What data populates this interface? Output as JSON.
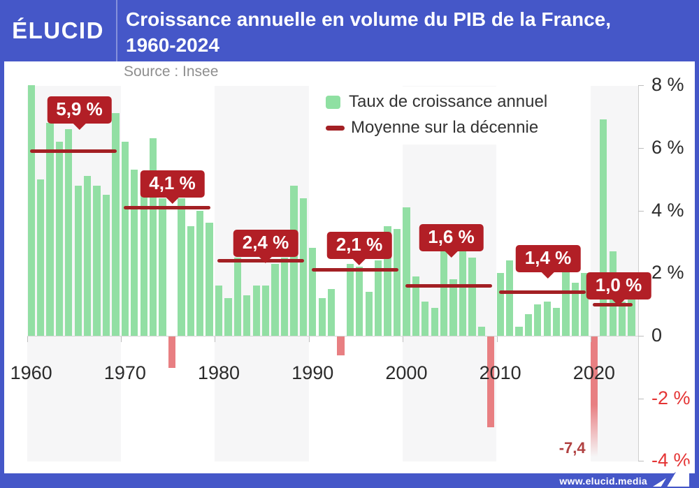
{
  "header": {
    "logo": "ÉLUCID",
    "title_line1": "Croissance annuelle en volume du PIB de la France,",
    "title_line2": "1960-2024"
  },
  "chart": {
    "source": "Source : Insee",
    "annotation_2020": "-7,4"
  },
  "legend": {
    "items": [
      {
        "swatch": "green-square",
        "label": "Taux de croissance annuel",
        "color": "#8fe0a2"
      },
      {
        "swatch": "red-line",
        "label": "Moyenne sur la décennie",
        "color": "#a32024"
      }
    ]
  },
  "footer": {
    "url": "www.elucid.media"
  },
  "colors": {
    "header_blue": "#4557c8",
    "bar_green": "#92dfa4",
    "bar_negative_pink": "#e87f82",
    "average_red": "#a32024",
    "callout_red": "#b21f26",
    "negative_label_red": "#e43434",
    "band_gray": "#f6f6f7"
  },
  "chart_data": {
    "type": "bar",
    "title": "Croissance annuelle en volume du PIB de la France, 1960-2024",
    "source": "Source : Insee",
    "xlabel": "",
    "ylabel": "%",
    "ylim": [
      -4,
      8
    ],
    "grid": "decade-bands",
    "legend_position": "top-center",
    "x_start": 1960,
    "x_end": 2024,
    "series": [
      {
        "name": "Taux de croissance annuel",
        "values": [
          8.0,
          5.0,
          6.8,
          6.2,
          6.6,
          4.8,
          5.1,
          4.8,
          4.5,
          7.1,
          6.2,
          5.3,
          4.5,
          6.3,
          4.4,
          -1.0,
          4.4,
          3.5,
          4.0,
          3.6,
          1.6,
          1.2,
          2.5,
          1.3,
          1.6,
          1.6,
          2.3,
          2.5,
          4.8,
          4.4,
          2.8,
          1.2,
          1.5,
          -0.6,
          2.3,
          2.2,
          1.4,
          2.4,
          3.5,
          3.4,
          4.1,
          1.9,
          1.1,
          0.9,
          2.8,
          1.8,
          2.7,
          2.5,
          0.3,
          -2.9,
          2.0,
          2.4,
          0.3,
          0.7,
          1.0,
          1.1,
          0.9,
          2.1,
          1.7,
          2.0,
          -7.4,
          6.9,
          2.7,
          1.1,
          1.2
        ]
      }
    ],
    "decade_averages": [
      {
        "decade_start": 1960,
        "label": "5,9 %",
        "value": 5.9
      },
      {
        "decade_start": 1970,
        "label": "4,1 %",
        "value": 4.1
      },
      {
        "decade_start": 1980,
        "label": "2,4 %",
        "value": 2.4
      },
      {
        "decade_start": 1990,
        "label": "2,1 %",
        "value": 2.1
      },
      {
        "decade_start": 2000,
        "label": "1,6 %",
        "value": 1.6
      },
      {
        "decade_start": 2010,
        "label": "1,4 %",
        "value": 1.4
      },
      {
        "decade_start": 2020,
        "label": "1,0 %",
        "value": 1.0
      }
    ],
    "y_ticks": [
      {
        "label": "8 %",
        "value": 8
      },
      {
        "label": "6 %",
        "value": 6
      },
      {
        "label": "4 %",
        "value": 4
      },
      {
        "label": "2 %",
        "value": 2
      },
      {
        "label": "0",
        "value": 0
      },
      {
        "label": "-2 %",
        "value": -2
      },
      {
        "label": "-4 %",
        "value": -4
      }
    ],
    "x_ticks": [
      "1960",
      "1970",
      "1980",
      "1990",
      "2000",
      "2010",
      "2020"
    ],
    "annotations": [
      {
        "text": "-7,4",
        "year": 2020,
        "value": -7.4
      }
    ]
  }
}
